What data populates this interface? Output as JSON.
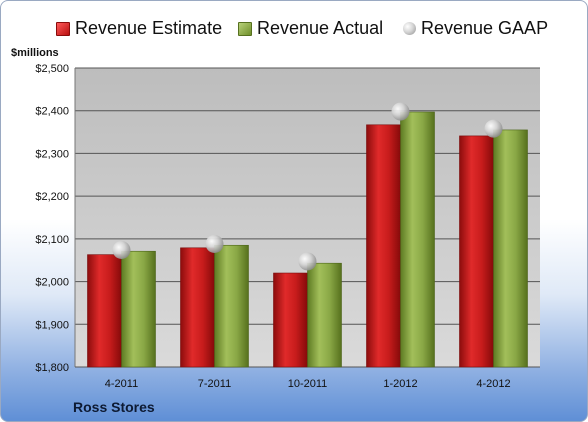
{
  "legend": {
    "estimate": "Revenue Estimate",
    "actual": "Revenue Actual",
    "gaap": "Revenue GAAP"
  },
  "units_label": "$millions",
  "company": "Ross Stores",
  "colors": {
    "estimate": "#c0171a",
    "actual": "#7f9c3a",
    "gaap": "#b8b8b8",
    "plot_bg": "#cccccc"
  },
  "chart_data": {
    "type": "bar",
    "title": "",
    "categories": [
      "4-2011",
      "7-2011",
      "10-2011",
      "1-2012",
      "4-2012"
    ],
    "series": [
      {
        "name": "Revenue Estimate",
        "values": [
          2063,
          2079,
          2020,
          2367,
          2341
        ]
      },
      {
        "name": "Revenue Actual",
        "values": [
          2071,
          2085,
          2043,
          2397,
          2355
        ]
      },
      {
        "name": "Revenue GAAP",
        "type": "scatter",
        "values": [
          2074,
          2088,
          2047,
          2398,
          2358
        ]
      }
    ],
    "ylabel": "$millions",
    "ylim": [
      1800,
      2500
    ],
    "yticks": [
      1800,
      1900,
      2000,
      2100,
      2200,
      2300,
      2400,
      2500
    ],
    "ytick_labels": [
      "$1,800",
      "$1,900",
      "$2,000",
      "$2,100",
      "$2,200",
      "$2,300",
      "$2,400",
      "$2,500"
    ],
    "grid": true,
    "legend_position": "top"
  }
}
